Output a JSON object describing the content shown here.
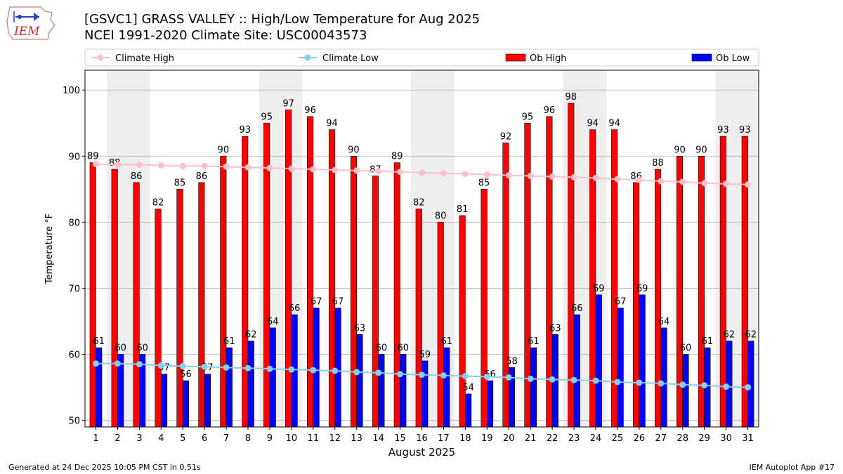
{
  "logo": {
    "text": "IEM",
    "color": "#d62728"
  },
  "title_line1": "[GSVC1] GRASS VALLEY :: High/Low Temperature for Aug 2025",
  "title_line2": "NCEI 1991-2020 Climate Site: USC00043573",
  "footer_left": "Generated at 24 Dec 2025 10:05 PM CST in 0.51s",
  "footer_right": "IEM Autoplot App #17",
  "chart_data": {
    "type": "bar",
    "xlabel": "August 2025",
    "ylabel": "Temperature °F",
    "ylim": [
      49,
      103
    ],
    "yticks": [
      50,
      60,
      70,
      80,
      90,
      100
    ],
    "grid": "horizontal",
    "legend_position": "top",
    "weekend_shading_color": "#eeeeee",
    "weekend_days": [
      2,
      3,
      9,
      10,
      16,
      17,
      23,
      24,
      30,
      31
    ],
    "categories": [
      "1",
      "2",
      "3",
      "4",
      "5",
      "6",
      "7",
      "8",
      "9",
      "10",
      "11",
      "12",
      "13",
      "14",
      "15",
      "16",
      "17",
      "18",
      "19",
      "20",
      "21",
      "22",
      "23",
      "24",
      "25",
      "26",
      "27",
      "28",
      "29",
      "30",
      "31"
    ],
    "series": [
      {
        "name": "Climate High",
        "kind": "line",
        "color": "#ffc0cb",
        "values": [
          88.8,
          88.7,
          88.7,
          88.6,
          88.5,
          88.5,
          88.4,
          88.3,
          88.2,
          88.1,
          88.0,
          87.9,
          87.8,
          87.7,
          87.6,
          87.5,
          87.4,
          87.3,
          87.2,
          87.1,
          87.0,
          86.9,
          86.8,
          86.7,
          86.5,
          86.4,
          86.2,
          86.1,
          85.9,
          85.8,
          85.7
        ]
      },
      {
        "name": "Climate Low",
        "kind": "line",
        "color": "#87ceeb",
        "values": [
          58.6,
          58.6,
          58.5,
          58.3,
          58.2,
          58.1,
          58.0,
          57.9,
          57.8,
          57.7,
          57.6,
          57.5,
          57.3,
          57.2,
          57.0,
          56.9,
          56.8,
          56.7,
          56.6,
          56.5,
          56.3,
          56.2,
          56.1,
          56.0,
          55.8,
          55.7,
          55.6,
          55.4,
          55.3,
          55.1,
          55.0
        ]
      },
      {
        "name": "Ob High",
        "kind": "bar",
        "color": "#ff0000",
        "values": [
          89,
          88,
          86,
          82,
          85,
          86,
          90,
          93,
          95,
          97,
          96,
          94,
          90,
          87,
          89,
          82,
          80,
          81,
          85,
          92,
          95,
          96,
          98,
          94,
          94,
          86,
          88,
          90,
          90,
          93,
          93
        ]
      },
      {
        "name": "Ob Low",
        "kind": "bar",
        "color": "#0000ff",
        "values": [
          61,
          60,
          60,
          57,
          56,
          57,
          61,
          62,
          64,
          66,
          67,
          67,
          63,
          60,
          60,
          59,
          61,
          54,
          56,
          58,
          61,
          63,
          66,
          69,
          67,
          69,
          64,
          60,
          61,
          62,
          62
        ]
      }
    ]
  }
}
